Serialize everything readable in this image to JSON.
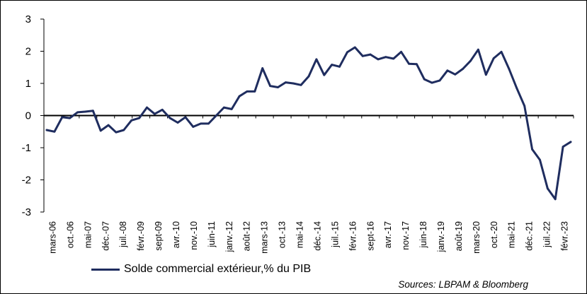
{
  "chart_data": {
    "type": "line",
    "title": "",
    "xlabel": "",
    "ylabel": "",
    "ylim": [
      -3,
      3
    ],
    "y_ticks": [
      "3",
      "2",
      "1",
      "0",
      "-1",
      "-2",
      "-3"
    ],
    "grid": false,
    "legend_position": "bottom-left",
    "x_tick_labels": [
      "mars-06",
      "oct.-06",
      "mai-07",
      "déc.-07",
      "juil.-08",
      "févr.-09",
      "sept-09",
      "avr.-10",
      "nov.-10",
      "juin-11",
      "janv.-12",
      "août-12",
      "mars-13",
      "oct.-13",
      "mai-14",
      "déc.-14",
      "juil.-15",
      "févr.-16",
      "sept-16",
      "avr.-17",
      "nov.-17",
      "juin-18",
      "janv.-19",
      "août-19",
      "mars-20",
      "oct.-20",
      "mai-21",
      "déc.-21",
      "juil.-22",
      "févr.-23"
    ],
    "series": [
      {
        "name": "Solde commercial extérieur,% du PIB",
        "color": "#1f2d5f",
        "values": [
          -0.45,
          -0.5,
          -0.05,
          -0.08,
          0.1,
          0.12,
          0.15,
          -0.47,
          -0.3,
          -0.52,
          -0.45,
          -0.15,
          -0.08,
          0.25,
          0.05,
          0.18,
          -0.08,
          -0.22,
          -0.05,
          -0.35,
          -0.25,
          -0.25,
          0.0,
          0.25,
          0.2,
          0.6,
          0.75,
          0.75,
          1.47,
          0.92,
          0.88,
          1.03,
          1.0,
          0.95,
          1.22,
          1.75,
          1.26,
          1.58,
          1.52,
          1.97,
          2.12,
          1.85,
          1.9,
          1.75,
          1.82,
          1.77,
          1.98,
          1.61,
          1.6,
          1.13,
          1.02,
          1.09,
          1.4,
          1.28,
          1.45,
          1.7,
          2.05,
          1.27,
          1.78,
          1.98,
          1.45,
          0.85,
          0.3,
          -1.05,
          -1.38,
          -2.27,
          -2.6,
          -0.97,
          -0.82
        ]
      }
    ],
    "source": "Sources: LBPAM & Bloomberg"
  }
}
